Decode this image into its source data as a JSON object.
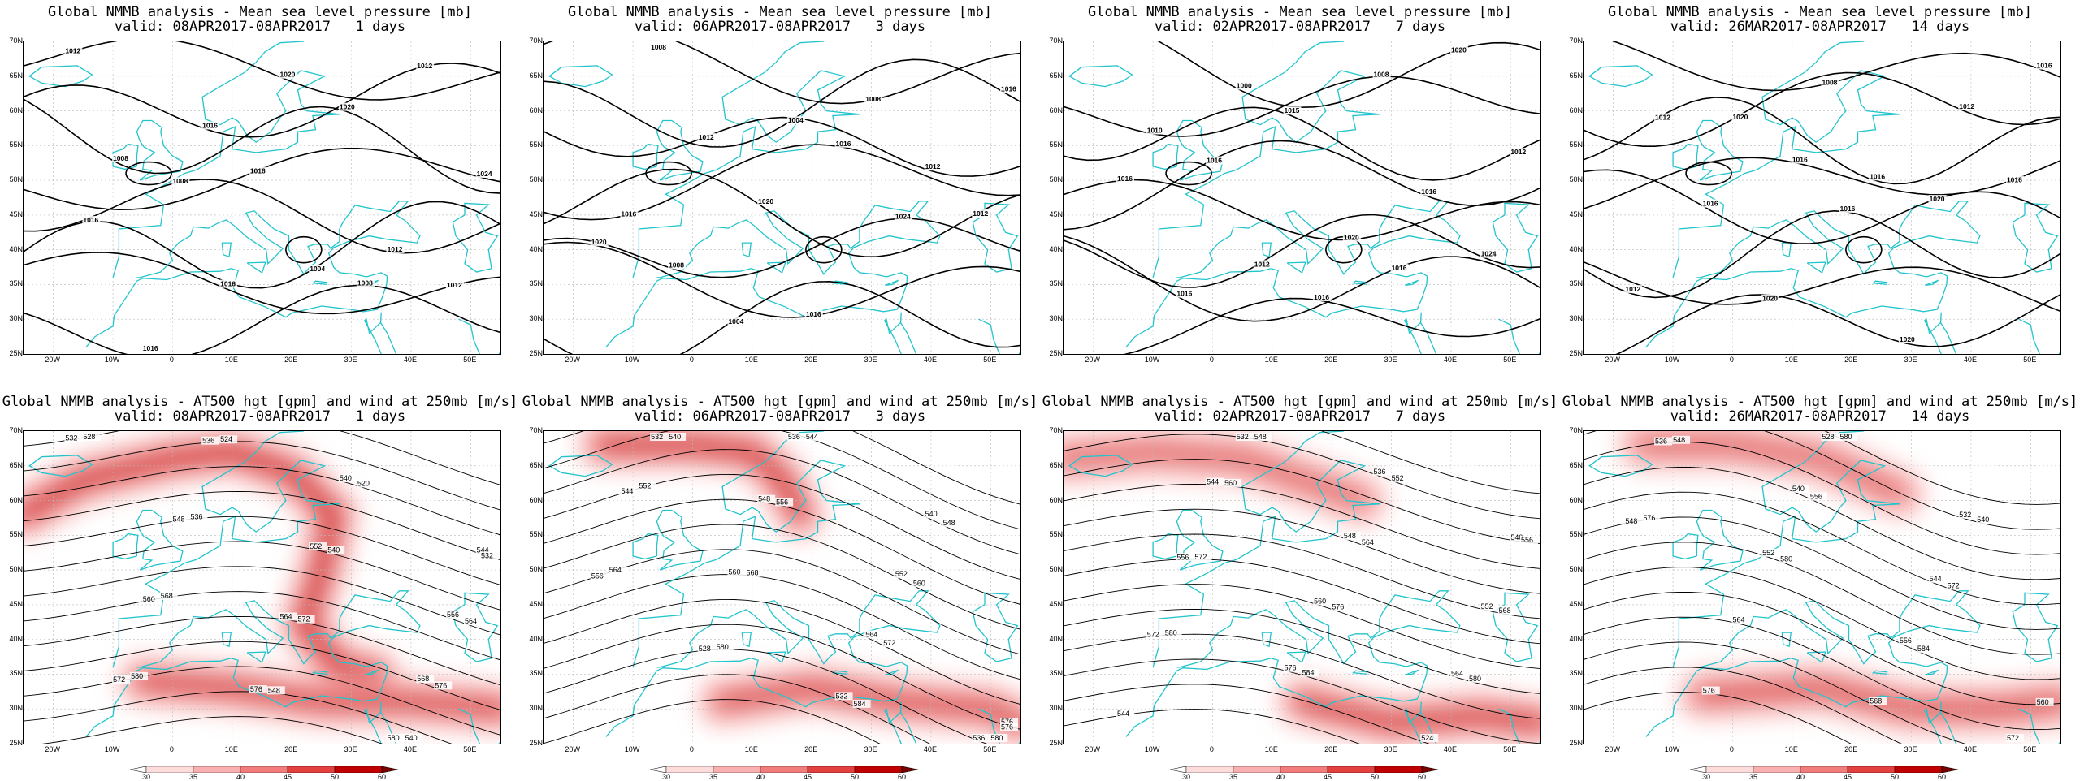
{
  "top_title_line1": "Global NMMB analysis - Mean sea level pressure [mb]",
  "bottom_title_line1": "Global NMMB analysis - AT500 hgt [gpm] and wind at 250mb [m/s]",
  "columns": [
    {
      "valid": "valid: 08APR2017-08APR2017   1 days"
    },
    {
      "valid": "valid: 06APR2017-08APR2017   3 days"
    },
    {
      "valid": "valid: 02APR2017-08APR2017   7 days"
    },
    {
      "valid": "valid: 26MAR2017-08APR2017   14 days"
    }
  ],
  "lat_labels": [
    "70N",
    "65N",
    "60N",
    "55N",
    "50N",
    "45N",
    "40N",
    "35N",
    "30N",
    "25N"
  ],
  "lon_labels": [
    "20W",
    "10W",
    "0",
    "10E",
    "20E",
    "30E",
    "40E",
    "50E"
  ],
  "colorbar_labels": [
    "30",
    "35",
    "40",
    "45",
    "50",
    "60"
  ],
  "colorbar_colors": [
    "#ffffff",
    "#fddcdc",
    "#f9b0b0",
    "#f27c7c",
    "#e34040",
    "#c00000",
    "#7a0000"
  ],
  "colors": {
    "coast": "#22c4cc",
    "contour": "#000000",
    "grid": "#bbbbbb"
  },
  "mslp_labels": [
    [
      "1012",
      "1016",
      "1020",
      "1024",
      "1008",
      "1004",
      "1012",
      "1016",
      "1020",
      "1012",
      "1008",
      "1016",
      "1012",
      "1016",
      "1016",
      "1008"
    ],
    [
      "1008",
      "1004",
      "1012",
      "1016",
      "1020",
      "1024",
      "1020",
      "1004",
      "1008",
      "1016",
      "1012",
      "1016",
      "1012",
      "1008",
      "1016"
    ],
    [
      "1000",
      "1008",
      "1012",
      "1016",
      "1020",
      "1024",
      "1016",
      "1016",
      "1020",
      "1010",
      "1015",
      "1016",
      "1016",
      "1012",
      "1016"
    ],
    [
      "1008",
      "1012",
      "1012",
      "1016",
      "1020",
      "1012",
      "1020",
      "1020",
      "1016",
      "1020",
      "1016",
      "1016",
      "1016",
      "1016"
    ]
  ],
  "hgt_labels": [
    [
      "532",
      "536",
      "540",
      "544",
      "548",
      "552",
      "556",
      "560",
      "564",
      "568",
      "572",
      "576",
      "580",
      "528",
      "524",
      "520",
      "532",
      "536",
      "540",
      "564",
      "568",
      "572",
      "576",
      "580",
      "548",
      "540"
    ],
    [
      "532",
      "536",
      "540",
      "544",
      "548",
      "552",
      "556",
      "560",
      "564",
      "576",
      "528",
      "532",
      "536",
      "540",
      "544",
      "548",
      "552",
      "556",
      "560",
      "564",
      "568",
      "572",
      "576",
      "580",
      "584",
      "580"
    ],
    [
      "532",
      "536",
      "540",
      "544",
      "548",
      "552",
      "556",
      "560",
      "564",
      "572",
      "576",
      "524",
      "544",
      "548",
      "552",
      "556",
      "560",
      "564",
      "568",
      "572",
      "576",
      "580",
      "580",
      "584"
    ],
    [
      "528",
      "532",
      "536",
      "540",
      "544",
      "548",
      "552",
      "556",
      "560",
      "564",
      "568",
      "572",
      "576",
      "580",
      "540",
      "548",
      "556",
      "572",
      "576",
      "580",
      "584"
    ]
  ]
}
